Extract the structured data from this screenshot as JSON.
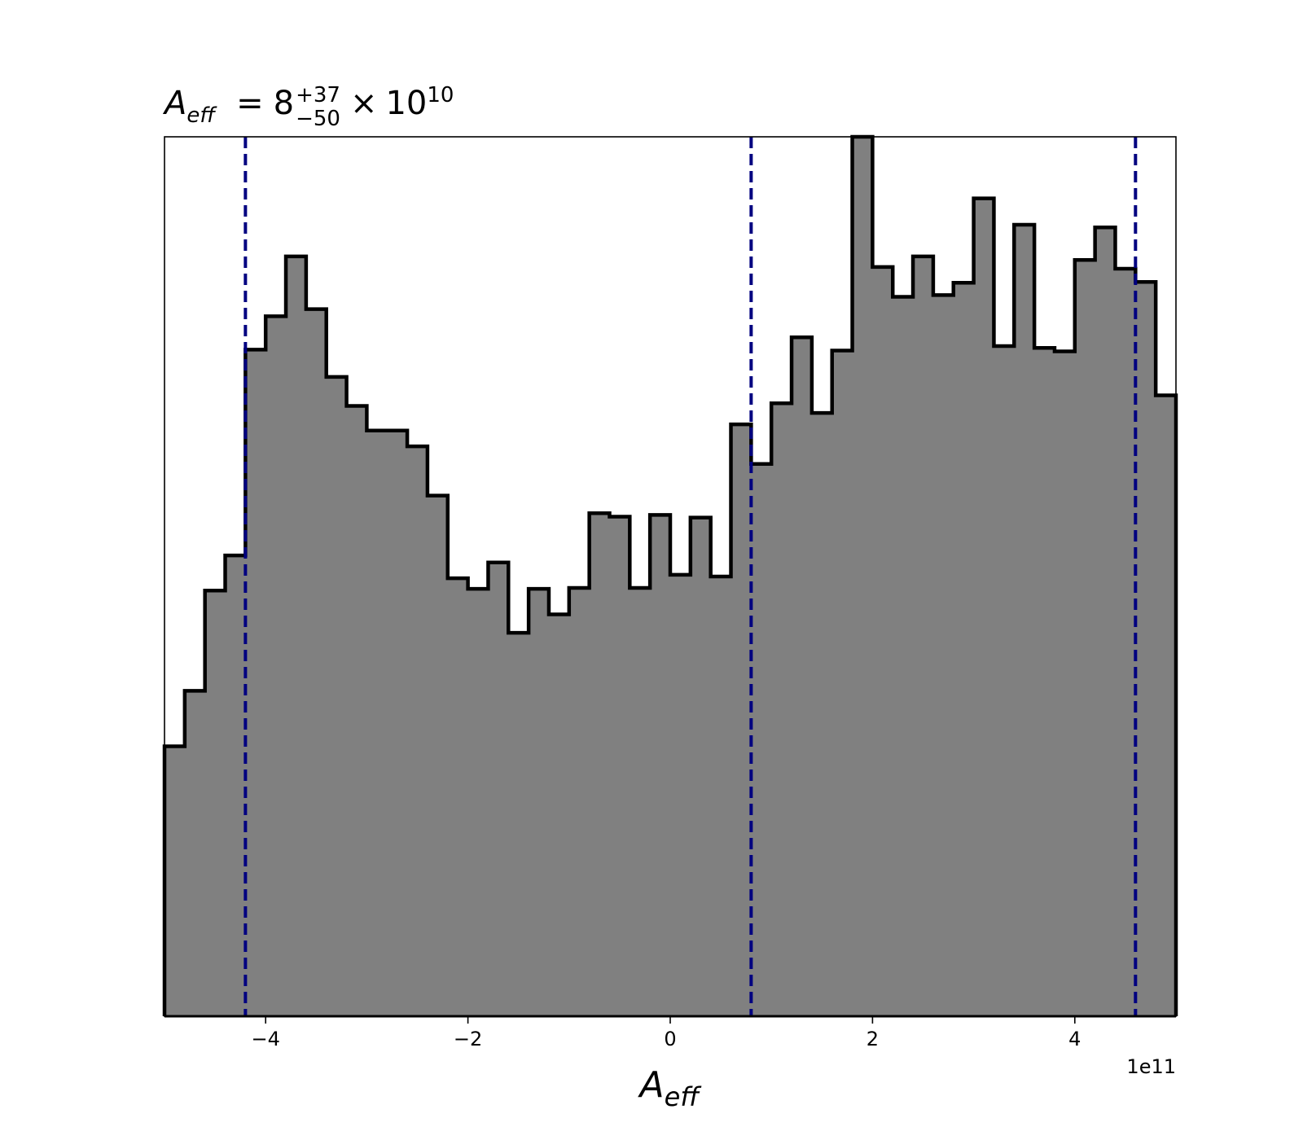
{
  "chart_data": {
    "type": "histogram",
    "title": {
      "symbol_base": "A",
      "symbol_sub": "eff",
      "equals": "=",
      "mantissa": "8",
      "upper": "+37",
      "lower": "−50",
      "times": "×",
      "power_base": "10",
      "exponent": "10"
    },
    "xlabel": {
      "base": "A",
      "sub": "eff"
    },
    "x_offset_label": "1e11",
    "xlim": [
      -5,
      5
    ],
    "ylim": [
      0,
      1.0
    ],
    "x_ticks": [
      {
        "value": -4,
        "label": "−4"
      },
      {
        "value": -2,
        "label": "−2"
      },
      {
        "value": 0,
        "label": "0"
      },
      {
        "value": 2,
        "label": "2"
      },
      {
        "value": 4,
        "label": "4"
      }
    ],
    "bin_edges": [
      -5,
      -4.8,
      -4.6,
      -4.4,
      -4.2,
      -4,
      -3.8,
      -3.6,
      -3.4,
      -3.2,
      -3,
      -2.8,
      -2.6,
      -2.4,
      -2.2,
      -2,
      -1.8,
      -1.6,
      -1.4,
      -1.2,
      -1,
      -0.8,
      -0.6,
      -0.4,
      -0.2,
      0,
      0.2,
      0.4,
      0.6,
      0.8,
      1,
      1.2,
      1.4,
      1.6,
      1.8,
      2,
      2.2,
      2.4,
      2.6,
      2.8,
      3,
      3.2,
      3.4,
      3.6,
      3.8,
      4,
      4.2,
      4.4,
      4.6,
      4.8,
      5
    ],
    "counts": [
      0.307,
      0.37,
      0.484,
      0.524,
      0.758,
      0.796,
      0.864,
      0.804,
      0.727,
      0.694,
      0.666,
      0.666,
      0.648,
      0.592,
      0.498,
      0.486,
      0.516,
      0.436,
      0.486,
      0.457,
      0.487,
      0.572,
      0.568,
      0.487,
      0.57,
      0.502,
      0.567,
      0.5,
      0.673,
      0.628,
      0.697,
      0.772,
      0.686,
      0.757,
      1.0,
      0.852,
      0.818,
      0.864,
      0.82,
      0.834,
      0.93,
      0.762,
      0.9,
      0.76,
      0.756,
      0.86,
      0.897,
      0.85,
      0.835,
      0.706
    ],
    "quantile_lines": [
      -4.2,
      0.8,
      4.6
    ],
    "fill_color": "#808080",
    "edge_color": "#000000",
    "line_color": "#000080",
    "grid": false
  }
}
